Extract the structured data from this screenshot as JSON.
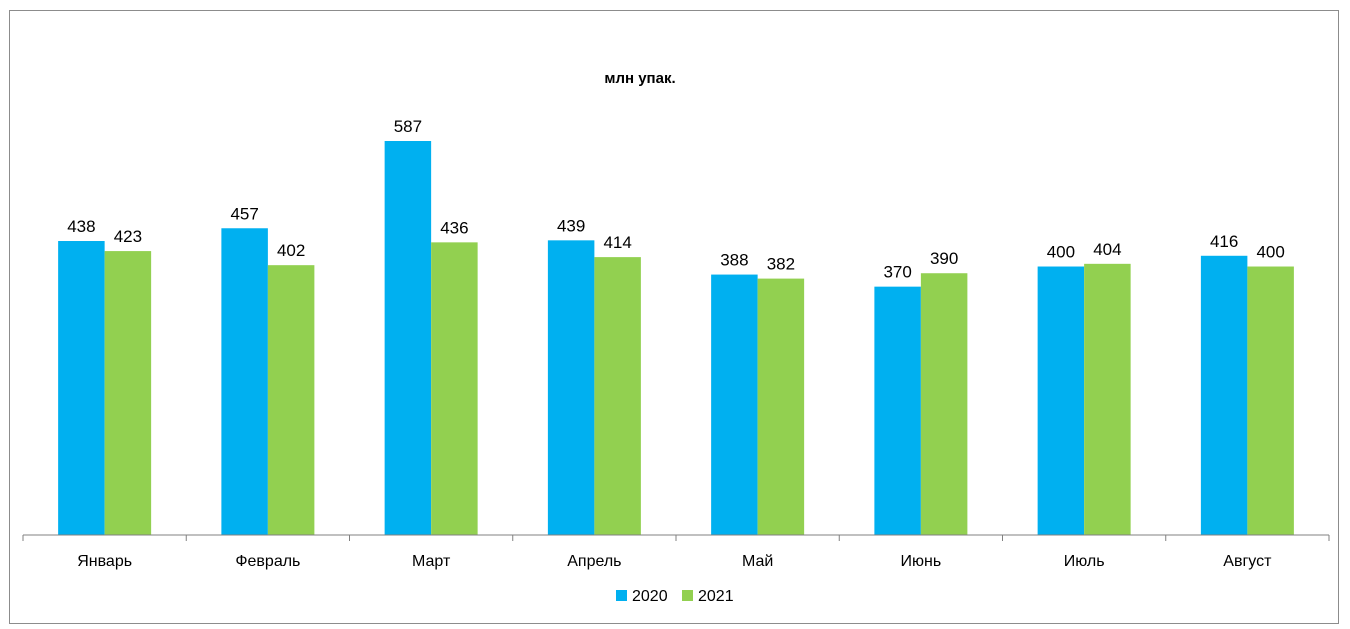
{
  "chart_data": {
    "type": "bar",
    "title": "млн упак.",
    "xlabel": "",
    "ylabel": "",
    "ylim": [
      0,
      640
    ],
    "grid": false,
    "legend_position": "bottom",
    "categories": [
      "Январь",
      "Февраль",
      "Март",
      "Апрель",
      "Май",
      "Июнь",
      "Июль",
      "Август"
    ],
    "series": [
      {
        "name": "2020",
        "color": "#00b0f0",
        "values": [
          438,
          457,
          587,
          439,
          388,
          370,
          400,
          416
        ]
      },
      {
        "name": "2021",
        "color": "#92d050",
        "values": [
          423,
          402,
          436,
          414,
          382,
          390,
          404,
          400
        ]
      }
    ]
  }
}
